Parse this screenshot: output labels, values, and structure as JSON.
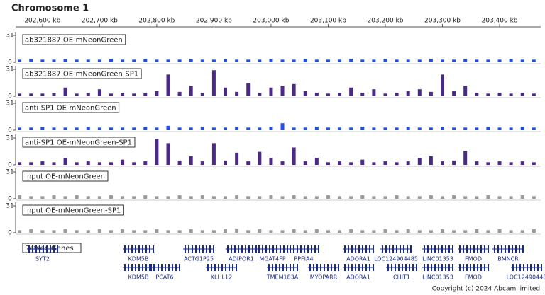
{
  "chart_data": {
    "type": "tracks",
    "title": "Chromosome 1",
    "xlim": [
      202553,
      203472
    ],
    "xticks": [
      {
        "value": 202600,
        "label": "202,600 kb"
      },
      {
        "value": 202700,
        "label": "202,700 kb"
      },
      {
        "value": 202800,
        "label": "202,800 kb"
      },
      {
        "value": 202900,
        "label": "202,900 kb"
      },
      {
        "value": 203000,
        "label": "203,000 kb"
      },
      {
        "value": 203100,
        "label": "203,100 kb"
      },
      {
        "value": 203200,
        "label": "203,200 kb"
      },
      {
        "value": 203300,
        "label": "203,300 kb"
      },
      {
        "value": 203400,
        "label": "203,400 kb"
      }
    ],
    "x": [
      202560,
      202580,
      202600,
      202620,
      202640,
      202660,
      202680,
      202700,
      202720,
      202740,
      202760,
      202780,
      202800,
      202820,
      202840,
      202860,
      202880,
      202900,
      202920,
      202940,
      202960,
      202980,
      203000,
      203020,
      203040,
      203060,
      203080,
      203100,
      203120,
      203140,
      203160,
      203180,
      203200,
      203220,
      203240,
      203260,
      203280,
      203300,
      203320,
      203340,
      203360,
      203380,
      203400,
      203420,
      203440,
      203460
    ],
    "ylim": [
      0,
      31
    ],
    "yticks": [
      0,
      31
    ],
    "series": [
      {
        "name": "ab321887 OE-mNeonGreen",
        "color": "#1f4fe8",
        "values": [
          3,
          4,
          3,
          3,
          4,
          3,
          3,
          3,
          4,
          3,
          3,
          4,
          3,
          3,
          3,
          4,
          3,
          3,
          4,
          3,
          3,
          3,
          4,
          3,
          3,
          4,
          3,
          3,
          3,
          4,
          3,
          3,
          4,
          3,
          3,
          3,
          4,
          3,
          3,
          4,
          3,
          3,
          3,
          4,
          3,
          3
        ]
      },
      {
        "name": "ab321887 OE-mNeonGreen-SP1",
        "color": "#4a2a86",
        "values": [
          3,
          3,
          3,
          4,
          10,
          3,
          4,
          8,
          3,
          4,
          3,
          4,
          6,
          25,
          5,
          12,
          4,
          30,
          10,
          5,
          15,
          4,
          10,
          12,
          14,
          6,
          4,
          3,
          4,
          10,
          4,
          8,
          3,
          4,
          6,
          8,
          5,
          25,
          6,
          12,
          4,
          3,
          4,
          3,
          4,
          3
        ]
      },
      {
        "name": "anti-SP1 OE-mNeonGreen",
        "color": "#1f4fe8",
        "values": [
          3,
          3,
          4,
          3,
          3,
          3,
          4,
          3,
          3,
          3,
          3,
          4,
          3,
          5,
          3,
          3,
          4,
          3,
          3,
          4,
          3,
          3,
          4,
          8,
          3,
          3,
          4,
          3,
          3,
          3,
          4,
          3,
          3,
          3,
          4,
          3,
          3,
          4,
          3,
          3,
          3,
          4,
          3,
          3,
          4,
          3
        ]
      },
      {
        "name": "anti-SP1 OE-mNeonGreen-SP1",
        "color": "#4a2a86",
        "values": [
          3,
          3,
          4,
          3,
          8,
          3,
          4,
          3,
          3,
          6,
          3,
          4,
          30,
          25,
          5,
          10,
          4,
          25,
          5,
          14,
          4,
          15,
          8,
          4,
          20,
          4,
          8,
          3,
          4,
          3,
          6,
          3,
          4,
          3,
          4,
          8,
          10,
          4,
          5,
          16,
          4,
          3,
          4,
          3,
          4,
          3
        ]
      },
      {
        "name": "Input OE-mNeonGreen",
        "color": "#999999",
        "values": [
          4,
          3,
          3,
          4,
          3,
          4,
          3,
          3,
          4,
          3,
          3,
          4,
          3,
          3,
          4,
          3,
          4,
          3,
          3,
          4,
          3,
          3,
          4,
          3,
          4,
          3,
          3,
          4,
          3,
          3,
          4,
          3,
          3,
          4,
          3,
          3,
          4,
          3,
          4,
          3,
          3,
          4,
          3,
          3,
          4,
          3
        ]
      },
      {
        "name": "Input OE-mNeonGreen-SP1",
        "color": "#999999",
        "values": [
          3,
          4,
          3,
          3,
          4,
          3,
          3,
          4,
          3,
          4,
          3,
          3,
          4,
          3,
          3,
          4,
          3,
          3,
          4,
          5,
          3,
          4,
          3,
          3,
          4,
          3,
          4,
          3,
          3,
          4,
          3,
          3,
          4,
          3,
          4,
          3,
          3,
          4,
          3,
          3,
          4,
          3,
          4,
          3,
          3,
          4
        ]
      }
    ],
    "gene_track": "Refseq Genes",
    "genes": [
      [
        "SYT2",
        "KDM5B",
        "ACTG1P25",
        "ADIPOR1",
        "MGAT4FP",
        "PPFIA4",
        "ADORA1",
        "LOC124904485",
        "LINC01353",
        "FMOD",
        "BMNCR"
      ],
      [
        "KDM5B",
        "PCAT6",
        "KLHL12",
        "TMEM183A",
        "MYOPARR",
        "ADORA1",
        "CHIT1",
        "LINC01353",
        "FMOD",
        "LOC12490448"
      ]
    ]
  },
  "footer": "Copyright (c) 2024 Abcam limited."
}
